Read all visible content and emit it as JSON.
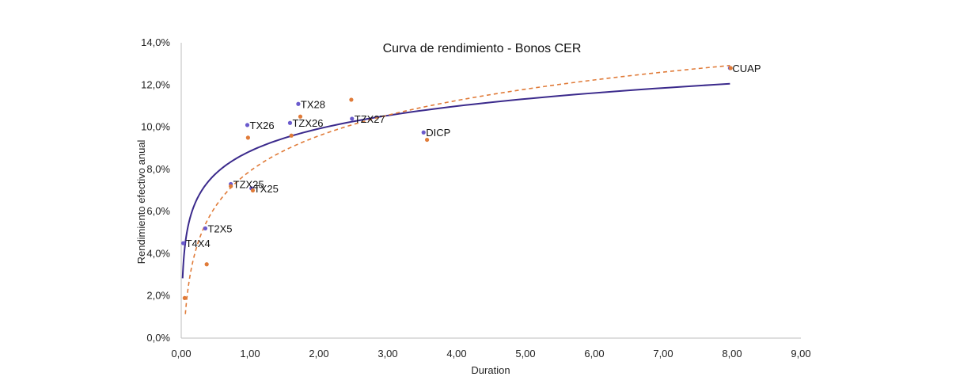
{
  "chart_data": {
    "type": "scatter",
    "title": "Curva de rendimiento - Bonos CER",
    "xlabel": "Duration",
    "ylabel": "Rendimiento efectivo anual",
    "xlim": [
      0,
      9
    ],
    "ylim": [
      0,
      14
    ],
    "x_ticks": [
      "0,00",
      "1,00",
      "2,00",
      "3,00",
      "4,00",
      "5,00",
      "6,00",
      "7,00",
      "8,00",
      "9,00"
    ],
    "y_ticks": [
      "0,0%",
      "2,0%",
      "4,0%",
      "6,0%",
      "8,0%",
      "10,0%",
      "12,0%",
      "14,0%"
    ],
    "grid": false,
    "series": [
      {
        "color": "#6a5acd",
        "points": [
          {
            "label": "T4X4",
            "x": 0.03,
            "y": 4.5
          },
          {
            "label": "T2X5",
            "x": 0.35,
            "y": 5.2
          },
          {
            "label": "TZX25",
            "x": 0.72,
            "y": 7.3
          },
          {
            "label": "TX25",
            "x": 1.02,
            "y": 7.1
          },
          {
            "label": "TX26",
            "x": 0.96,
            "y": 10.1
          },
          {
            "label": "TZX26",
            "x": 1.58,
            "y": 10.2
          },
          {
            "label": "TX28",
            "x": 1.7,
            "y": 11.1
          },
          {
            "label": "TZX27",
            "x": 2.48,
            "y": 10.4
          },
          {
            "label": "DICP",
            "x": 3.52,
            "y": 9.75
          },
          {
            "label": "CUAP",
            "x": 7.97,
            "y": 12.8
          }
        ]
      },
      {
        "color": "#e07b39",
        "points": [
          {
            "x": 0.05,
            "y": 1.9
          },
          {
            "x": 0.37,
            "y": 3.5
          },
          {
            "x": 0.72,
            "y": 7.2
          },
          {
            "x": 1.04,
            "y": 7.0
          },
          {
            "x": 0.97,
            "y": 9.5
          },
          {
            "x": 1.6,
            "y": 9.6
          },
          {
            "x": 1.73,
            "y": 10.5
          },
          {
            "x": 2.47,
            "y": 11.3
          },
          {
            "x": 3.57,
            "y": 9.4
          },
          {
            "x": 7.98,
            "y": 12.8
          }
        ]
      }
    ],
    "trendlines": [
      {
        "type": "logarithmic",
        "color": "#3b2a8c",
        "style": "solid",
        "a": 8.86,
        "b": 1.54,
        "x_range": [
          0.02,
          7.97
        ]
      },
      {
        "type": "logarithmic",
        "color": "#e07b39",
        "style": "dashed",
        "a": 7.92,
        "b": 2.41,
        "x_range": [
          0.06,
          7.97
        ]
      }
    ]
  }
}
